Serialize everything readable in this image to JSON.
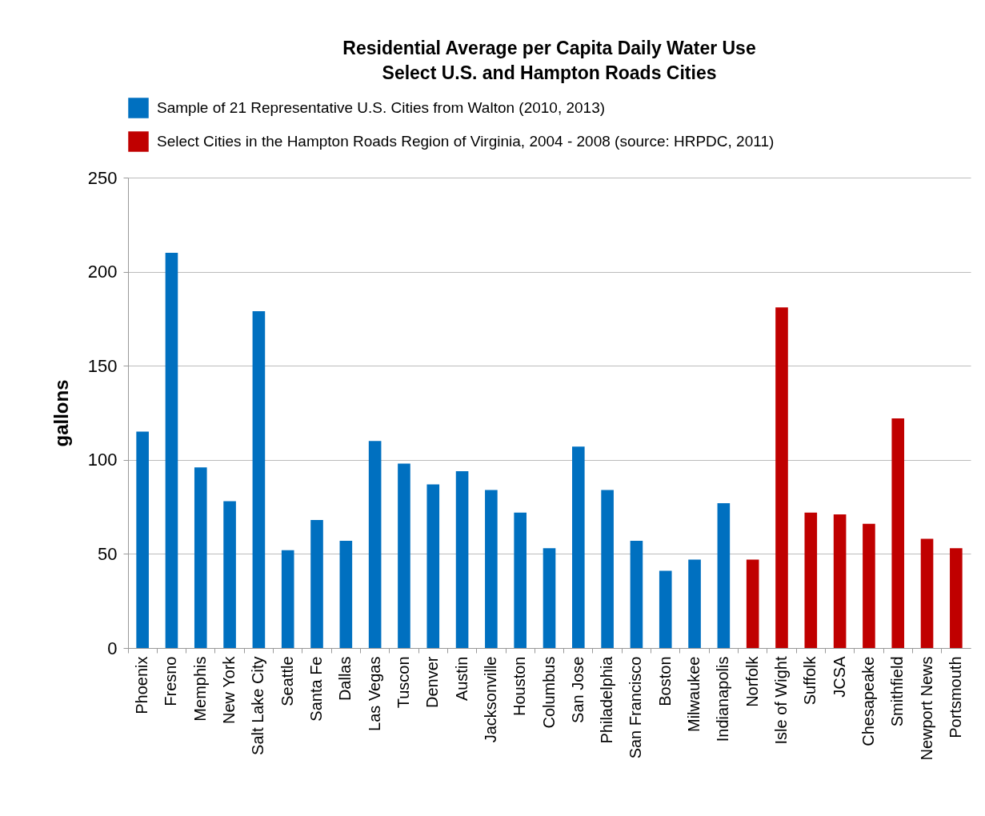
{
  "chart_data": {
    "type": "bar",
    "title": "Residential Average per Capita Daily Water Use",
    "subtitle": "Select U.S. and Hampton Roads Cities",
    "ylabel": "gallons",
    "categories": [
      "Phoenix",
      "Fresno",
      "Memphis",
      "New York",
      "Salt Lake City",
      "Seattle",
      "Santa Fe",
      "Dallas",
      "Las Vegas",
      "Tuscon",
      "Denver",
      "Austin",
      "Jacksonville",
      "Houston",
      "Columbus",
      "San Jose",
      "Philadelphia",
      "San Francisco",
      "Boston",
      "Milwaukee",
      "Indianapolis",
      "Norfolk",
      "Isle of Wight",
      "Suffolk",
      "JCSA",
      "Chesapeake",
      "Smithfield",
      "Newport News",
      "Portsmouth"
    ],
    "series": [
      {
        "name": "Sample of 21 Representative U.S. Cities from Walton (2010, 2013)",
        "color": "#0070c0",
        "values": [
          115,
          210,
          96,
          78,
          179,
          52,
          68,
          57,
          110,
          98,
          87,
          94,
          84,
          72,
          53,
          107,
          84,
          57,
          41,
          47,
          77,
          null,
          null,
          null,
          null,
          null,
          null,
          null,
          null
        ]
      },
      {
        "name": "Select Cities in the Hampton Roads Region of Virginia, 2004 - 2008 (source: HRPDC, 2011)",
        "color": "#c00000",
        "values": [
          null,
          null,
          null,
          null,
          null,
          null,
          null,
          null,
          null,
          null,
          null,
          null,
          null,
          null,
          null,
          null,
          null,
          null,
          null,
          null,
          null,
          47,
          181,
          72,
          71,
          66,
          122,
          58,
          53
        ]
      }
    ],
    "ylim": [
      0,
      250
    ],
    "yticks": [
      0,
      50,
      100,
      150,
      200,
      250
    ],
    "grid": "y",
    "legend": "top"
  }
}
